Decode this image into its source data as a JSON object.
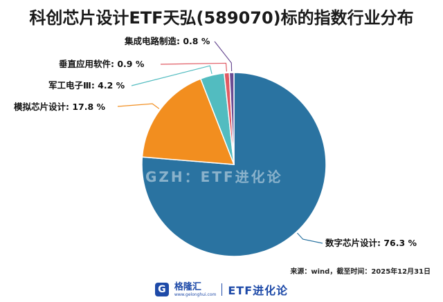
{
  "title": "科创芯片设计ETF天弘(589070)标的指数行业分布",
  "watermark": "GZH：ETF进化论",
  "source": "来源：wind，截至时间：2025年12月31日",
  "footer": {
    "logo_icon": "G",
    "brand_name": "格隆汇",
    "brand_url": "www.gelonghui.com",
    "account": "ETF进化论"
  },
  "chart_data": {
    "type": "pie",
    "title": "科创芯片设计ETF天弘(589070)标的指数行业分布",
    "unit": "%",
    "slices": [
      {
        "label": "数字芯片设计",
        "value": 76.3,
        "display": "数字芯片设计: 76.3 %",
        "color": "#2a73a1"
      },
      {
        "label": "模拟芯片设计",
        "value": 17.8,
        "display": "模拟芯片设计: 17.8 %",
        "color": "#f28e1f"
      },
      {
        "label": "军工电子Ⅲ",
        "value": 4.2,
        "display": "军工电子Ⅲ: 4.2 %",
        "color": "#52bcc0"
      },
      {
        "label": "垂直应用软件",
        "value": 0.9,
        "display": "垂直应用软件: 0.9 %",
        "color": "#e05a63"
      },
      {
        "label": "集成电路制造",
        "value": 0.8,
        "display": "集成电路制造: 0.8 %",
        "color": "#6a4c93"
      }
    ]
  }
}
